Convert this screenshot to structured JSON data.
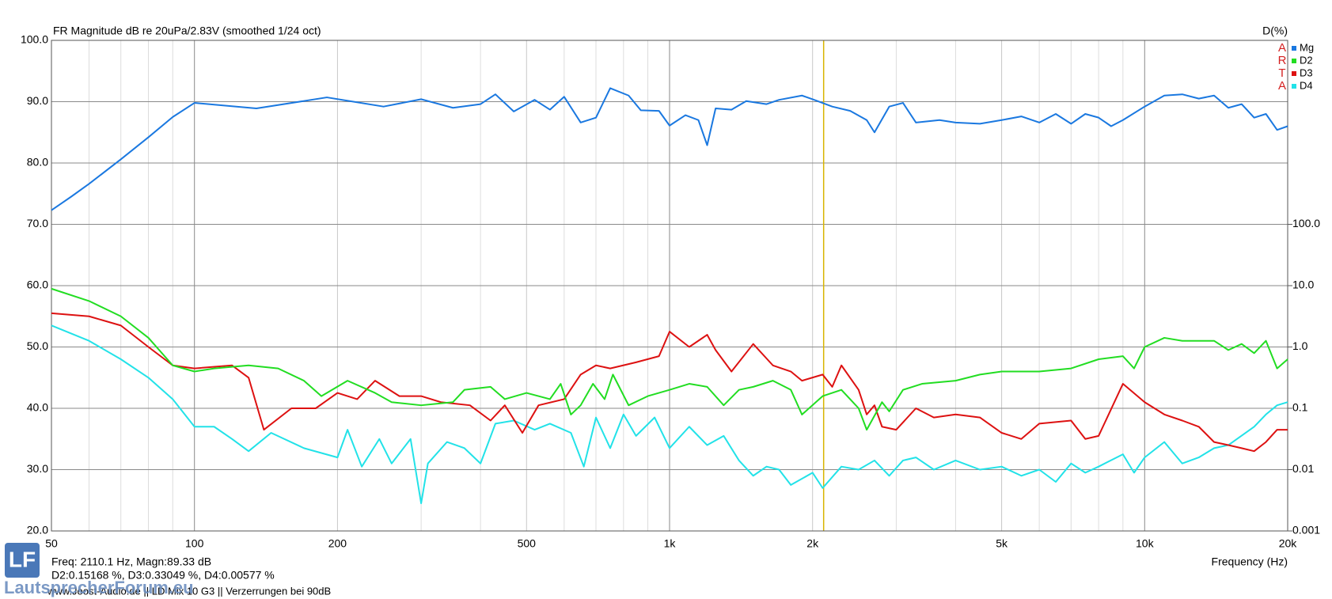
{
  "chart_data": {
    "type": "line",
    "title": "FR Magnitude dB re 20uPa/2.83V (smoothed 1/24 oct)",
    "y2_title": "D(%)",
    "x_label": "Frequency (Hz)",
    "xscale": "log",
    "y2scale": "log",
    "grid": true,
    "legend": "top-right",
    "xlim": [
      50,
      20000
    ],
    "xticks": [
      50,
      100,
      200,
      500,
      {
        "value": 1000,
        "label": "1k"
      },
      {
        "value": 2000,
        "label": "2k"
      },
      {
        "value": 5000,
        "label": "5k"
      },
      {
        "value": 10000,
        "label": "10k"
      },
      {
        "value": 20000,
        "label": "20k"
      }
    ],
    "xminorticks": [
      60,
      70,
      80,
      90,
      300,
      400,
      600,
      700,
      800,
      900,
      3000,
      4000,
      6000,
      7000,
      8000,
      9000
    ],
    "ylim": [
      20,
      100
    ],
    "yticks": [
      {
        "value": 20,
        "label": "20.0"
      },
      {
        "value": 30,
        "label": "30.0"
      },
      {
        "value": 40,
        "label": "40.0"
      },
      {
        "value": 50,
        "label": "50.0"
      },
      {
        "value": 60,
        "label": "60.0"
      },
      {
        "value": 70,
        "label": "70.0"
      },
      {
        "value": 80,
        "label": "80.0"
      },
      {
        "value": 90,
        "label": "90.0"
      },
      {
        "value": 100,
        "label": "100.0"
      }
    ],
    "y2lim": [
      0.001,
      100000
    ],
    "y2ticks": [
      0.001,
      0.01,
      0.1,
      {
        "value": 1,
        "label": "1.0"
      },
      {
        "value": 10,
        "label": "10.0"
      },
      {
        "value": 100,
        "label": "100.0"
      }
    ],
    "cursor_x": 2110.1,
    "cursor_color": "#d8b400",
    "brand_letters": [
      "A",
      "R",
      "T",
      "A"
    ],
    "series": [
      {
        "name": "Mg",
        "color": "#1a78e0",
        "x": [
          50,
          55,
          60,
          70,
          80,
          90,
          100,
          135,
          190,
          250,
          300,
          350,
          400,
          430,
          470,
          520,
          560,
          600,
          650,
          700,
          750,
          820,
          870,
          950,
          1000,
          1080,
          1150,
          1200,
          1250,
          1350,
          1450,
          1600,
          1700,
          1900,
          2000,
          2200,
          2400,
          2600,
          2700,
          2900,
          3100,
          3300,
          3700,
          4000,
          4500,
          5000,
          5500,
          6000,
          6500,
          7000,
          7500,
          8000,
          8500,
          9000,
          10000,
          11000,
          12000,
          13000,
          14000,
          15000,
          16000,
          17000,
          18000,
          19000,
          20000
        ],
        "values": [
          72.3,
          74.5,
          76.6,
          80.6,
          84.2,
          87.5,
          89.8,
          88.9,
          90.7,
          89.2,
          90.4,
          89,
          89.6,
          91.2,
          88.4,
          90.3,
          88.7,
          90.8,
          86.6,
          87.4,
          92.2,
          91,
          88.6,
          88.5,
          86.1,
          87.8,
          87,
          82.9,
          88.9,
          88.7,
          90.1,
          89.6,
          90.3,
          91,
          90.4,
          89.2,
          88.5,
          87,
          85,
          89.2,
          89.8,
          86.6,
          87,
          86.6,
          86.4,
          87,
          87.6,
          86.6,
          88,
          86.4,
          88,
          87.4,
          86,
          87,
          89.2,
          91,
          91.2,
          90.5,
          91,
          89,
          89.6,
          87.4,
          88,
          85.4,
          86
        ]
      },
      {
        "name": "D2",
        "color": "#22dd22",
        "axis": "y2",
        "x": [
          50,
          60,
          70,
          80,
          90,
          100,
          110,
          130,
          150,
          170,
          185,
          210,
          240,
          260,
          300,
          350,
          370,
          420,
          450,
          500,
          560,
          590,
          620,
          650,
          690,
          730,
          760,
          820,
          900,
          1000,
          1100,
          1200,
          1300,
          1400,
          1500,
          1650,
          1800,
          1900,
          2100,
          2300,
          2500,
          2600,
          2800,
          2900,
          3100,
          3400,
          4000,
          4500,
          5000,
          6000,
          7000,
          8000,
          9000,
          9500,
          10000,
          11000,
          12000,
          14000,
          15000,
          16000,
          17000,
          18000,
          19000,
          20000
        ],
        "values": [
          8.91,
          5.62,
          3.16,
          1.41,
          0.501,
          0.398,
          0.447,
          0.501,
          0.447,
          0.282,
          0.158,
          0.282,
          0.178,
          0.126,
          0.112,
          0.126,
          0.2,
          0.224,
          0.141,
          0.178,
          0.141,
          0.251,
          0.079,
          0.112,
          0.251,
          0.141,
          0.355,
          0.112,
          0.158,
          0.2,
          0.251,
          0.224,
          0.112,
          0.2,
          0.224,
          0.282,
          0.2,
          0.079,
          0.158,
          0.2,
          0.1,
          0.0447,
          0.126,
          0.0891,
          0.2,
          0.251,
          0.282,
          0.355,
          0.398,
          0.398,
          0.447,
          0.631,
          0.708,
          0.447,
          1.0,
          1.41,
          1.26,
          1.26,
          0.891,
          1.12,
          0.794,
          1.26,
          0.447,
          0.631
        ]
      },
      {
        "name": "D3",
        "color": "#dd1111",
        "axis": "y2",
        "x": [
          50,
          60,
          70,
          80,
          90,
          100,
          120,
          130,
          140,
          160,
          180,
          200,
          220,
          240,
          270,
          300,
          330,
          380,
          420,
          450,
          490,
          530,
          600,
          650,
          700,
          750,
          850,
          950,
          1000,
          1100,
          1200,
          1250,
          1350,
          1500,
          1650,
          1800,
          1900,
          2100,
          2200,
          2300,
          2500,
          2600,
          2700,
          2800,
          3000,
          3300,
          3600,
          4000,
          4500,
          5000,
          5500,
          6000,
          7000,
          7500,
          8000,
          9000,
          10000,
          11000,
          12000,
          13000,
          14000,
          15000,
          16000,
          17000,
          18000,
          19000,
          20000
        ],
        "values": [
          3.55,
          3.16,
          2.24,
          1.0,
          0.501,
          0.447,
          0.501,
          0.316,
          0.0447,
          0.1,
          0.1,
          0.178,
          0.141,
          0.282,
          0.158,
          0.158,
          0.126,
          0.112,
          0.0631,
          0.112,
          0.0398,
          0.112,
          0.141,
          0.355,
          0.501,
          0.447,
          0.562,
          0.708,
          1.78,
          1.0,
          1.58,
          0.891,
          0.398,
          1.12,
          0.501,
          0.398,
          0.282,
          0.355,
          0.224,
          0.501,
          0.2,
          0.0794,
          0.112,
          0.0501,
          0.0447,
          0.1,
          0.0708,
          0.0794,
          0.0708,
          0.0398,
          0.0316,
          0.0562,
          0.0631,
          0.0316,
          0.0355,
          0.251,
          0.126,
          0.0794,
          0.0631,
          0.0501,
          0.0282,
          0.0251,
          0.0224,
          0.02,
          0.0282,
          0.0447,
          0.0447
        ]
      },
      {
        "name": "D4",
        "color": "#22e2e8",
        "axis": "y2",
        "x": [
          50,
          60,
          70,
          80,
          90,
          100,
          110,
          120,
          130,
          145,
          170,
          200,
          210,
          225,
          245,
          260,
          285,
          300,
          310,
          340,
          370,
          400,
          430,
          470,
          520,
          560,
          620,
          660,
          700,
          750,
          800,
          850,
          930,
          1000,
          1100,
          1200,
          1300,
          1400,
          1500,
          1600,
          1700,
          1800,
          2000,
          2100,
          2300,
          2500,
          2700,
          2900,
          3100,
          3300,
          3600,
          4000,
          4500,
          5000,
          5500,
          6000,
          6500,
          7000,
          7500,
          8000,
          9000,
          9500,
          10000,
          11000,
          12000,
          13000,
          14000,
          15000,
          17000,
          18000,
          19000,
          20000
        ],
        "values": [
          2.24,
          1.26,
          0.631,
          0.316,
          0.141,
          0.0501,
          0.0501,
          0.0316,
          0.02,
          0.0398,
          0.0224,
          0.0158,
          0.0447,
          0.0112,
          0.0316,
          0.0126,
          0.0316,
          0.00282,
          0.0126,
          0.0282,
          0.0224,
          0.0126,
          0.0562,
          0.0631,
          0.0447,
          0.0562,
          0.0398,
          0.0112,
          0.0708,
          0.0224,
          0.0794,
          0.0355,
          0.0708,
          0.0224,
          0.0501,
          0.0251,
          0.0355,
          0.0141,
          0.00794,
          0.0112,
          0.01,
          0.00562,
          0.00891,
          0.00501,
          0.0112,
          0.01,
          0.0141,
          0.00794,
          0.0141,
          0.0158,
          0.01,
          0.0141,
          0.01,
          0.0112,
          0.00794,
          0.01,
          0.00631,
          0.0126,
          0.00891,
          0.0112,
          0.0178,
          0.00891,
          0.0158,
          0.0282,
          0.0126,
          0.0158,
          0.0224,
          0.0251,
          0.0501,
          0.0794,
          0.112,
          0.126
        ]
      }
    ]
  },
  "cursor_info": [
    "Freq: 2110.1 Hz, Magn:89.33 dB",
    "D2:0.15168 %, D3:0.33049 %, D4:0.00577 %"
  ],
  "footer": "www.Joost-Audio.de || LD Mix 10 G3 || Verzerrungen bei 90dB",
  "logo": {
    "mark": "LF",
    "text": "LautsprecherForum.eu"
  }
}
